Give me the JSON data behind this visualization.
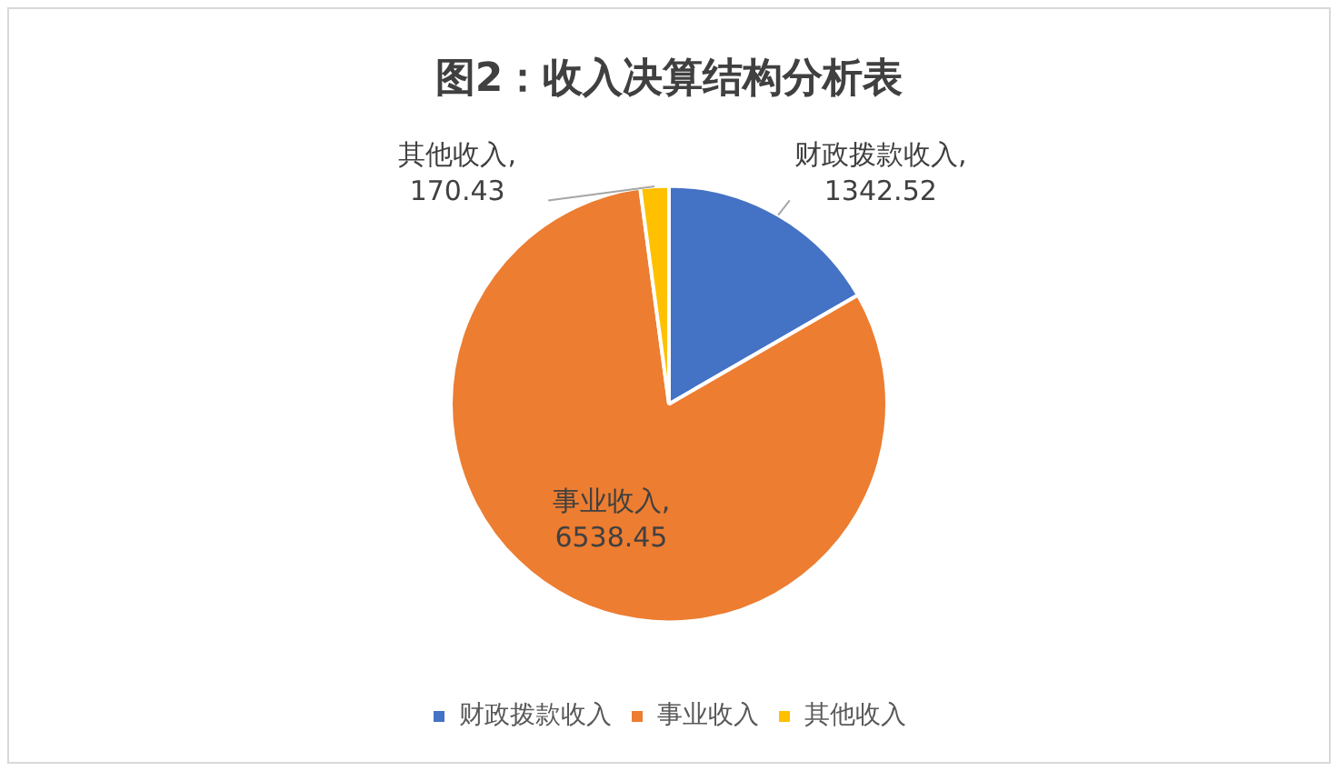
{
  "chart_data": {
    "type": "pie",
    "title": "图2：收入决算结构分析表",
    "categories": [
      "财政拨款收入",
      "事业收入",
      "其他收入"
    ],
    "values": [
      1342.52,
      6538.45,
      170.43
    ],
    "colors": [
      "#4472c4",
      "#ed7d31",
      "#ffc000"
    ],
    "value_labels": [
      "财政拨款收入,1342.52",
      "事业收入,6538.45",
      "其他收入,170.43"
    ],
    "legend": "bottom"
  }
}
